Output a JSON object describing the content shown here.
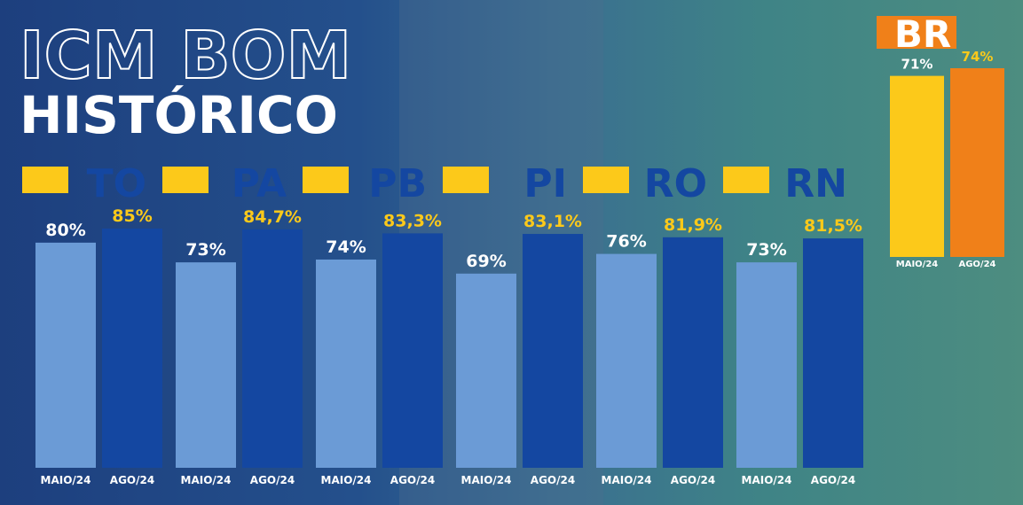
{
  "chart_data": [
    {
      "type": "bar",
      "title": "ICM BOM",
      "subtitle": "HISTÓRICO",
      "categories": [
        "TO",
        "PA",
        "PB",
        "PI",
        "RO",
        "RN"
      ],
      "series": [
        {
          "name": "MAIO/24",
          "color": "#6b9bd6",
          "label_color": "#ffffff",
          "values": [
            80,
            73,
            74,
            69,
            76,
            73
          ],
          "value_labels": [
            "80%",
            "73%",
            "74%",
            "69%",
            "76%",
            "73%"
          ]
        },
        {
          "name": "AGO/24",
          "color": "#1447a1",
          "label_color": "#fcc91a",
          "values": [
            85,
            84.7,
            83.3,
            83.1,
            81.9,
            81.5
          ],
          "value_labels": [
            "85%",
            "84,7%",
            "83,3%",
            "83,1%",
            "81,9%",
            "81,5%"
          ]
        }
      ],
      "ylim": [
        0,
        85
      ]
    },
    {
      "type": "bar",
      "title": "BR",
      "series": [
        {
          "name": "MAIO/24",
          "color": "#fcc91a",
          "label_color": "#ffffff",
          "values": [
            71
          ],
          "value_labels": [
            "71%"
          ]
        },
        {
          "name": "AGO/24",
          "color": "#f08019",
          "label_color": "#fcc91a",
          "values": [
            74
          ],
          "value_labels": [
            "74%"
          ]
        }
      ],
      "ylim": [
        0,
        74
      ]
    }
  ]
}
